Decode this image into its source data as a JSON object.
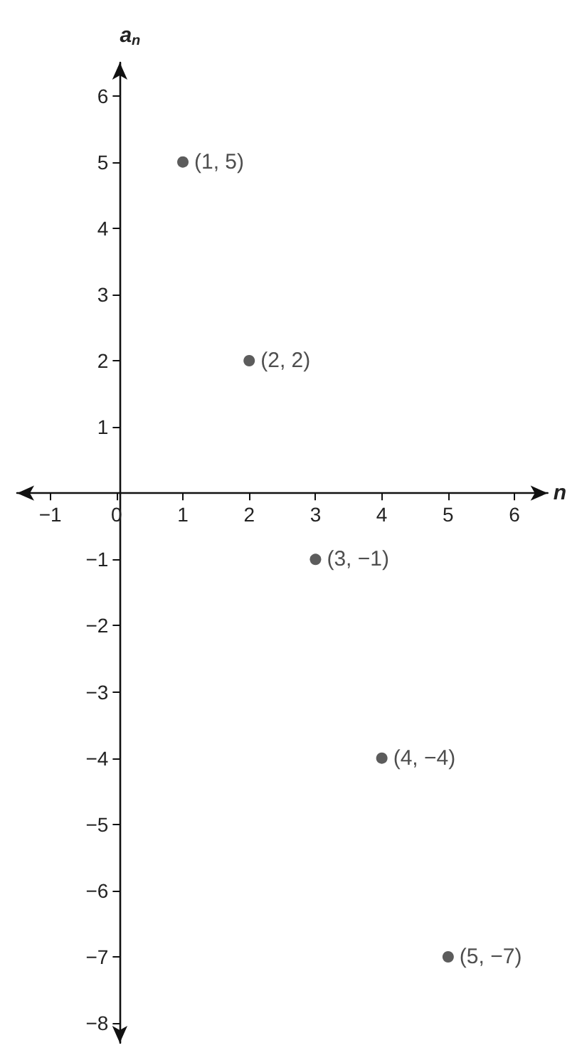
{
  "chart_data": {
    "type": "scatter",
    "xlabel": "n",
    "ylabel": "a$_{n}$",
    "x": [
      1,
      2,
      3,
      4,
      5
    ],
    "series": [
      {
        "color": "#333333",
        "values": [
          5,
          2,
          -1,
          -4,
          -7
        ]
      }
    ],
    "xlim": [
      -1.5,
      6.5
    ],
    "ylim": [
      -8.3,
      6.5
    ],
    "xticks": [
      -1,
      0,
      1,
      2,
      3,
      4,
      5,
      6
    ],
    "yticks": [
      -8,
      -7,
      -6,
      -5,
      -4,
      -3,
      -2,
      -1,
      1,
      2,
      3,
      4,
      5,
      6
    ],
    "grid": false,
    "marker": "circle",
    "annotations": [
      {
        "text": "(1, 5)",
        "x": 1,
        "y": 5
      },
      {
        "text": "(2, 2)",
        "x": 2,
        "y": 2
      },
      {
        "text": "(3, −1)",
        "x": 3,
        "y": -1
      },
      {
        "text": "(4, −4)",
        "x": 4,
        "y": -4
      },
      {
        "text": "(5, −7)",
        "x": 5,
        "y": -7
      }
    ]
  }
}
